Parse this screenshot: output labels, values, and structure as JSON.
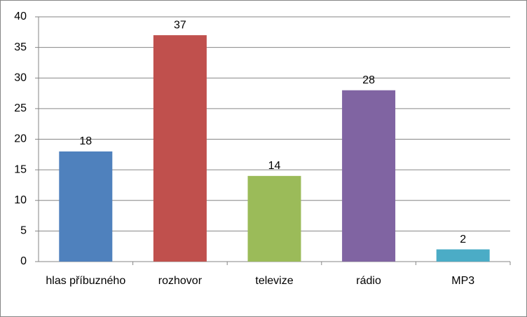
{
  "chart_data": {
    "type": "bar",
    "categories": [
      "hlas příbuzného",
      "rozhovor",
      "televize",
      "rádio",
      "MP3"
    ],
    "values": [
      18,
      37,
      14,
      28,
      2
    ],
    "colors": [
      "#4f81bd",
      "#c0504d",
      "#9bbb59",
      "#8064a2",
      "#4bacc6"
    ],
    "ylim": [
      0,
      40
    ],
    "yticks": [
      0,
      5,
      10,
      15,
      20,
      25,
      30,
      35,
      40
    ],
    "grid": true
  }
}
